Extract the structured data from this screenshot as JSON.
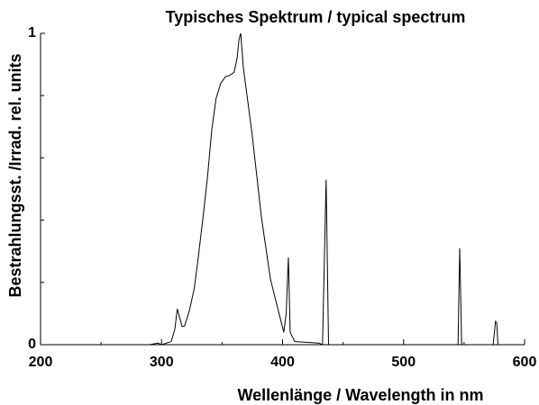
{
  "chart_data": {
    "type": "line",
    "title": "Typisches Spektrum / typical spectrum",
    "xlabel": "Wellenlänge / Wavelength in nm",
    "ylabel": "Bestrahlungsst. /Irrad. rel. units",
    "x": [
      200,
      290,
      297,
      300,
      308,
      311,
      313,
      317,
      319,
      323,
      327,
      330,
      334,
      338,
      341.5,
      345,
      349,
      352.7,
      356.4,
      360,
      362.4,
      364,
      365.4,
      367.6,
      375,
      382.5,
      390,
      397.4,
      401,
      403,
      404.8,
      406.3,
      410,
      430,
      433,
      436,
      438,
      545,
      546.4,
      548,
      574,
      576,
      577,
      578,
      600
    ],
    "values": [
      0,
      0,
      0.005,
      0,
      0.01,
      0.05,
      0.115,
      0.058,
      0.06,
      0.11,
      0.18,
      0.27,
      0.4,
      0.54,
      0.69,
      0.79,
      0.84,
      0.86,
      0.865,
      0.875,
      0.92,
      0.98,
      1.0,
      0.89,
      0.67,
      0.41,
      0.21,
      0.095,
      0.04,
      0.1,
      0.28,
      0.04,
      0.01,
      0.005,
      0,
      0.53,
      0,
      0,
      0.31,
      0,
      0,
      0.075,
      0.07,
      0,
      0
    ],
    "color": "#000000",
    "xlim": [
      200,
      600
    ],
    "xticks": [
      200,
      300,
      400,
      500,
      600
    ],
    "xminorticks": [
      250,
      350,
      450,
      550
    ],
    "ylim": [
      0,
      1
    ],
    "yticks": [
      0,
      1
    ],
    "yminorticks": [
      0.2,
      0.4,
      0.6,
      0.8
    ],
    "grid": false
  }
}
